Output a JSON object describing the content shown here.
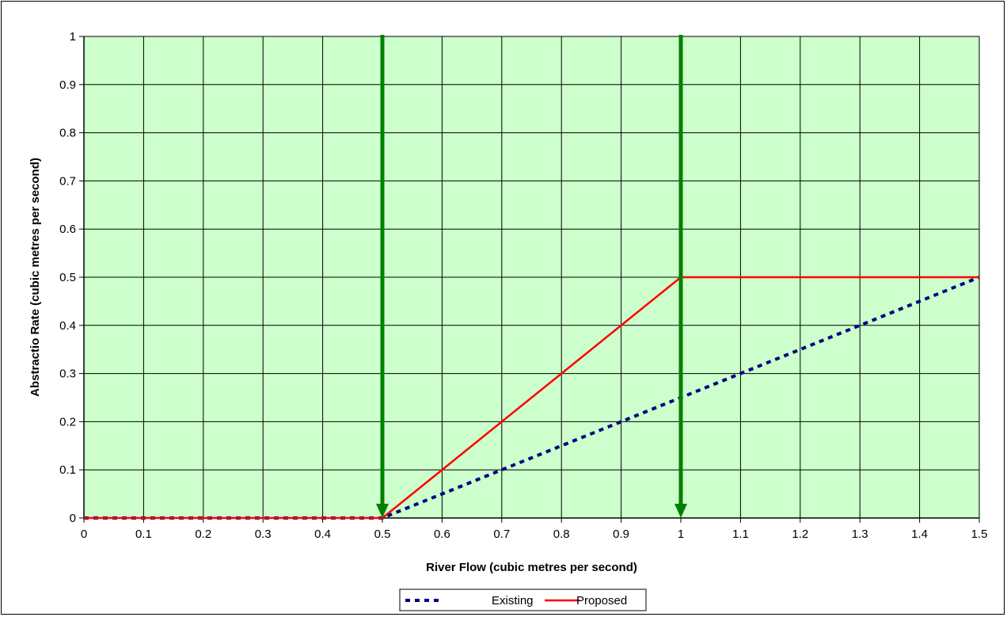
{
  "chart_data": {
    "type": "line",
    "title": "",
    "xlabel": "River Flow (cubic metres per second)",
    "ylabel": "Abstractio Rate (cubic metres per second)",
    "xlim": [
      0,
      1.5
    ],
    "ylim": [
      0,
      1
    ],
    "x_ticks": [
      "0",
      "0.1",
      "0.2",
      "0.3",
      "0.4",
      "0.5",
      "0.6",
      "0.7",
      "0.8",
      "0.9",
      "1",
      "1.1",
      "1.2",
      "1.3",
      "1.4",
      "1.5"
    ],
    "y_ticks": [
      "0",
      "0.1",
      "0.2",
      "0.3",
      "0.4",
      "0.5",
      "0.6",
      "0.7",
      "0.8",
      "0.9",
      "1"
    ],
    "grid": true,
    "legend_position": "bottom",
    "plot_background": "#ccffcc",
    "series": [
      {
        "name": "Existing",
        "color": "#000080",
        "style": "dashed",
        "x": [
          0,
          0.5,
          1.5
        ],
        "y": [
          0,
          0,
          0.5
        ]
      },
      {
        "name": "Proposed",
        "color": "#ff0000",
        "style": "solid",
        "x": [
          0,
          0.5,
          1.0,
          1.5
        ],
        "y": [
          0,
          0,
          0.5,
          0.5
        ]
      }
    ],
    "annotations": [
      {
        "type": "arrow-down",
        "x": 0.5,
        "color": "#008000"
      },
      {
        "type": "arrow-down",
        "x": 1.0,
        "color": "#008000"
      }
    ]
  }
}
